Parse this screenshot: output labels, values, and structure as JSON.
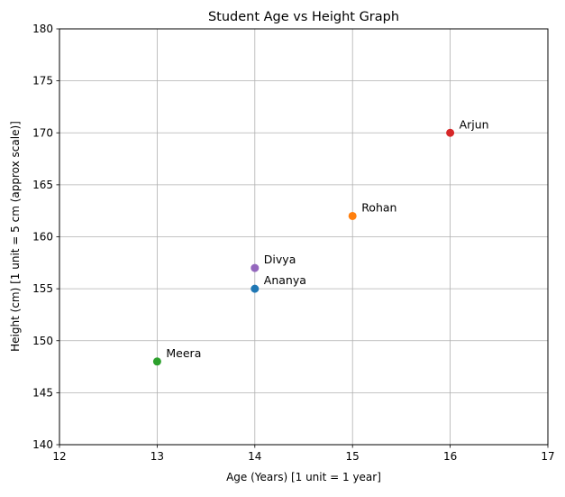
{
  "chart_data": {
    "type": "scatter",
    "title": "Student Age vs Height Graph",
    "xlabel": "Age (Years)  [1 unit = 1 year]",
    "ylabel": "Height (cm)  [1 unit = 5 cm (approx scale)]",
    "xlim": [
      12,
      17
    ],
    "ylim": [
      140,
      180
    ],
    "x_ticks": [
      12,
      13,
      14,
      15,
      16,
      17
    ],
    "y_ticks": [
      140,
      145,
      150,
      155,
      160,
      165,
      170,
      175,
      180
    ],
    "grid": true,
    "points": [
      {
        "label": "Ananya",
        "x": 14,
        "y": 155,
        "color": "#1f77b4"
      },
      {
        "label": "Rohan",
        "x": 15,
        "y": 162,
        "color": "#ff7f0e"
      },
      {
        "label": "Meera",
        "x": 13,
        "y": 148,
        "color": "#2ca02c"
      },
      {
        "label": "Arjun",
        "x": 16,
        "y": 170,
        "color": "#d62728"
      },
      {
        "label": "Divya",
        "x": 14,
        "y": 157,
        "color": "#9467bd"
      }
    ]
  }
}
